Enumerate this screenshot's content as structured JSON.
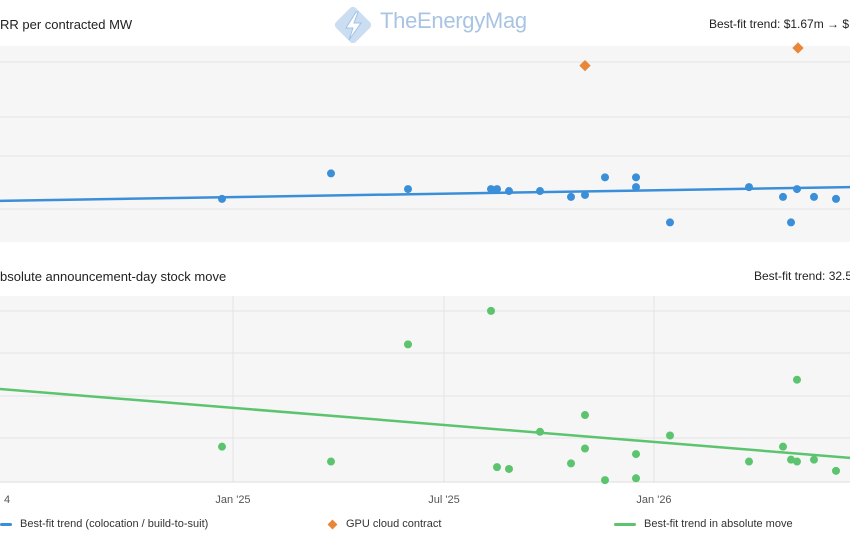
{
  "logo": {
    "text_a": "The",
    "text_b": "Energy",
    "text_c": "Mag"
  },
  "top_chart": {
    "title": "RR per contracted MW",
    "trend_label": "Best-fit trend: $1.67m → $1."
  },
  "bottom_chart": {
    "title": "bsolute announcement-day stock move",
    "trend_label": "Best-fit trend: 32.5"
  },
  "x_ticks": [
    {
      "label": "4",
      "date": "2024-07"
    },
    {
      "label": "Jan '25",
      "date": "2025-01"
    },
    {
      "label": "Jul '25",
      "date": "2025-07"
    },
    {
      "label": "Jan '26",
      "date": "2026-01"
    }
  ],
  "legend": [
    {
      "label": "Best-fit trend (colocation / build-to-suit)",
      "color": "#3b8fd9",
      "shape": "line"
    },
    {
      "label": "GPU cloud contract",
      "color": "#e8873a",
      "shape": "diamond"
    },
    {
      "label": "Best-fit trend in absolute move",
      "color": "#5cc46e",
      "shape": "line"
    }
  ],
  "colors": {
    "blue": "#3b8fd9",
    "orange": "#e8873a",
    "green": "#5cc46e",
    "plot_bg": "#f6f6f6",
    "grid": "#e4e4e4"
  },
  "chart_data": [
    {
      "type": "scatter",
      "title": "RR per contracted MW",
      "x_axis": "date",
      "ylim": [
        0,
        1
      ],
      "grid": true,
      "series": [
        {
          "name": "Best-fit trend (colocation / build-to-suit)",
          "kind": "trend_line",
          "color": "#3b8fd9",
          "points": [
            [
              0,
              0.21
            ],
            [
              850,
              0.28
            ]
          ]
        },
        {
          "kind": "points",
          "color": "#3b8fd9",
          "points": [
            [
              222,
              0.22
            ],
            [
              331,
              0.35
            ],
            [
              408,
              0.27
            ],
            [
              491,
              0.27
            ],
            [
              497,
              0.27
            ],
            [
              509,
              0.26
            ],
            [
              540,
              0.26
            ],
            [
              571,
              0.23
            ],
            [
              585,
              0.24
            ],
            [
              605,
              0.33
            ],
            [
              636,
              0.33
            ],
            [
              636,
              0.28
            ],
            [
              670,
              0.1
            ],
            [
              749,
              0.28
            ],
            [
              783,
              0.23
            ],
            [
              791,
              0.1
            ],
            [
              797,
              0.27
            ],
            [
              814,
              0.23
            ],
            [
              836,
              0.22
            ]
          ]
        },
        {
          "name": "GPU cloud contract",
          "kind": "points",
          "color": "#e8873a",
          "shape": "diamond",
          "points": [
            [
              585,
              0.9
            ],
            [
              798,
              0.99
            ]
          ]
        }
      ]
    },
    {
      "type": "scatter",
      "title": "bsolute announcement-day stock move",
      "x_axis": "date",
      "ylim": [
        0,
        1
      ],
      "grid": true,
      "series": [
        {
          "name": "Best-fit trend in absolute move",
          "kind": "trend_line",
          "color": "#5cc46e",
          "points": [
            [
              0,
              0.5
            ],
            [
              850,
              0.13
            ]
          ]
        },
        {
          "kind": "points",
          "color": "#5cc46e",
          "points": [
            [
              222,
              0.19
            ],
            [
              331,
              0.11
            ],
            [
              408,
              0.74
            ],
            [
              491,
              0.92
            ],
            [
              497,
              0.08
            ],
            [
              509,
              0.07
            ],
            [
              540,
              0.27
            ],
            [
              571,
              0.1
            ],
            [
              585,
              0.18
            ],
            [
              585,
              0.36
            ],
            [
              605,
              0.01
            ],
            [
              636,
              0.15
            ],
            [
              636,
              0.02
            ],
            [
              670,
              0.25
            ],
            [
              749,
              0.11
            ],
            [
              783,
              0.19
            ],
            [
              791,
              0.12
            ],
            [
              797,
              0.11
            ],
            [
              797,
              0.55
            ],
            [
              814,
              0.12
            ],
            [
              836,
              0.06
            ]
          ]
        }
      ]
    }
  ]
}
